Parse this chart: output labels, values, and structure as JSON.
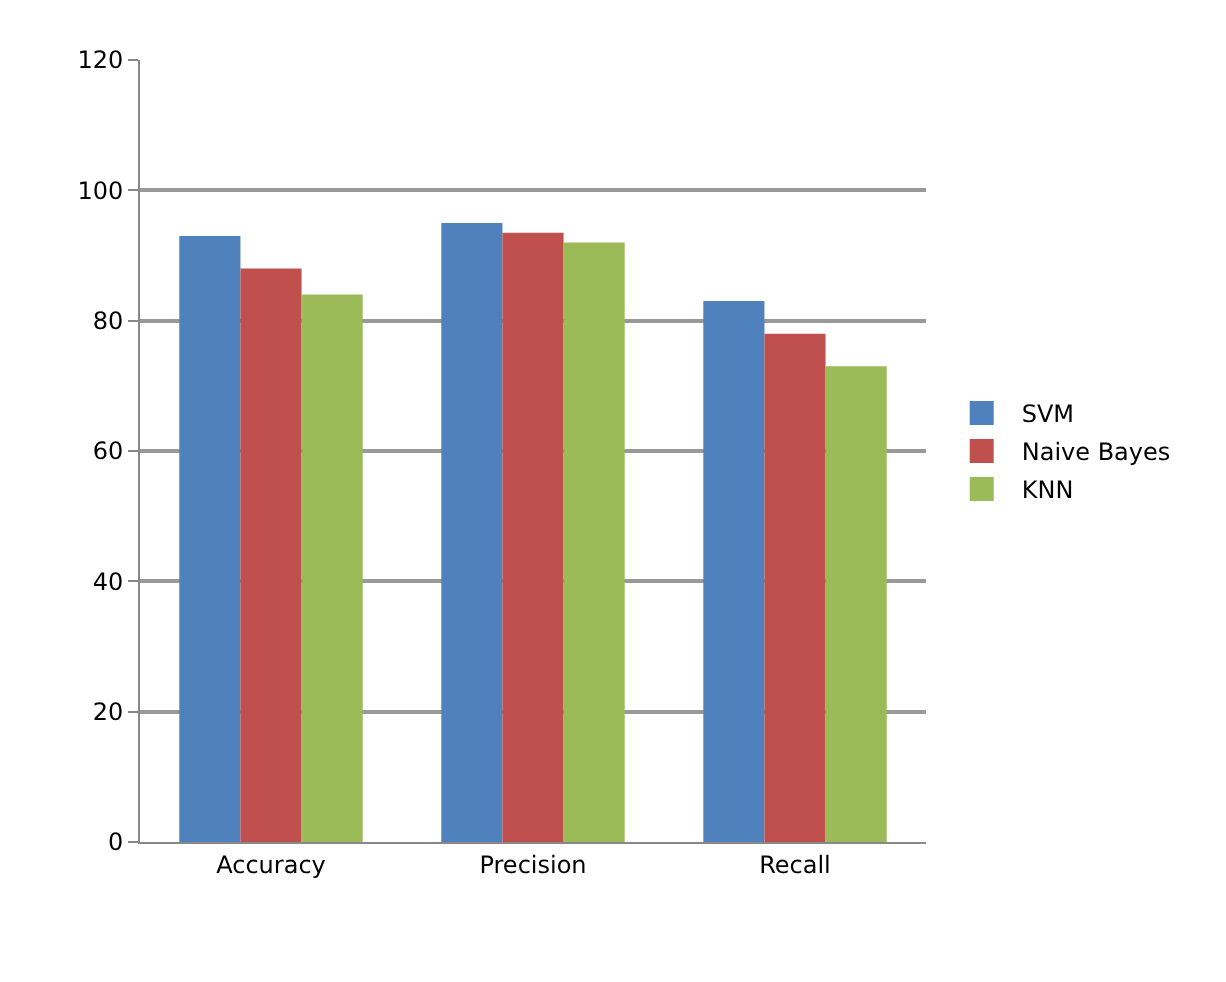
{
  "chart_data": {
    "type": "bar",
    "categories": [
      "Accuracy",
      "Precision",
      "Recall"
    ],
    "series": [
      {
        "name": "SVM",
        "color": "#4f81bd",
        "values": [
          93,
          95,
          83
        ]
      },
      {
        "name": "Naive Bayes",
        "color": "#c0504d",
        "values": [
          88,
          93.5,
          78
        ]
      },
      {
        "name": "KNN",
        "color": "#9bbb59",
        "values": [
          84,
          92,
          73
        ]
      }
    ],
    "ylim": [
      0,
      120
    ],
    "yticks": [
      0,
      20,
      40,
      60,
      80,
      100,
      120
    ],
    "grid": "y",
    "legend": "right"
  }
}
